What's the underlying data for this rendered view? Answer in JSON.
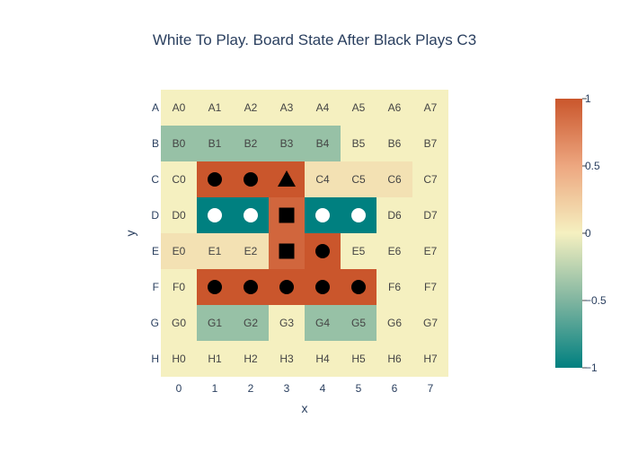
{
  "chart_data": {
    "type": "heatmap",
    "title": "White To Play. Board State After Black Plays C3",
    "xlabel": "x",
    "ylabel": "y",
    "x_ticks": [
      "0",
      "1",
      "2",
      "3",
      "4",
      "5",
      "6",
      "7"
    ],
    "y_ticks": [
      "A",
      "B",
      "C",
      "D",
      "E",
      "F",
      "G",
      "H"
    ],
    "zrange": [
      -1,
      1
    ],
    "colorbar_ticks": [
      {
        "value": 1,
        "label": "1"
      },
      {
        "value": 0.5,
        "label": "0.5"
      },
      {
        "value": 0,
        "label": "0"
      },
      {
        "value": -0.5,
        "label": "−0.5"
      },
      {
        "value": -1,
        "label": "−1"
      }
    ],
    "colorscale": [
      [
        0.0,
        "#008080"
      ],
      [
        0.25,
        "#80b5a0"
      ],
      [
        0.5,
        "#f5f0c0"
      ],
      [
        0.75,
        "#eda780"
      ],
      [
        1.0,
        "#ca562c"
      ]
    ],
    "z": [
      [
        0,
        0,
        0,
        0,
        0,
        0,
        0,
        0
      ],
      [
        -0.4,
        -0.4,
        -0.4,
        -0.4,
        -0.4,
        0,
        0,
        0
      ],
      [
        0,
        1,
        1,
        1,
        0.1,
        0.1,
        0.1,
        0
      ],
      [
        0,
        -1,
        -1,
        0.9,
        -1,
        -1,
        0,
        0
      ],
      [
        0.1,
        0.1,
        0.1,
        0.9,
        1,
        0,
        0,
        0
      ],
      [
        0,
        1,
        1,
        1,
        1,
        1,
        0,
        0
      ],
      [
        0,
        -0.4,
        -0.4,
        0,
        -0.4,
        -0.4,
        0,
        0
      ],
      [
        0,
        0,
        0,
        0,
        0,
        0,
        0,
        0
      ]
    ],
    "labels": [
      [
        "A0",
        "A1",
        "A2",
        "A3",
        "A4",
        "A5",
        "A6",
        "A7"
      ],
      [
        "B0",
        "B1",
        "B2",
        "B3",
        "B4",
        "B5",
        "B6",
        "B7"
      ],
      [
        "C0",
        "",
        "",
        "",
        "C4",
        "C5",
        "C6",
        "C7"
      ],
      [
        "D0",
        "",
        "",
        "",
        "",
        "",
        "D6",
        "D7"
      ],
      [
        "E0",
        "E1",
        "E2",
        "",
        "",
        "E5",
        "E6",
        "E7"
      ],
      [
        "F0",
        "",
        "",
        "",
        "",
        "",
        "F6",
        "F7"
      ],
      [
        "G0",
        "G1",
        "G2",
        "G3",
        "G4",
        "G5",
        "G6",
        "G7"
      ],
      [
        "H0",
        "H1",
        "H2",
        "H3",
        "H4",
        "H5",
        "H6",
        "H7"
      ]
    ],
    "markers": [
      {
        "row": 2,
        "col": 1,
        "symbol": "circle",
        "color": "#000000"
      },
      {
        "row": 2,
        "col": 2,
        "symbol": "circle",
        "color": "#000000"
      },
      {
        "row": 2,
        "col": 3,
        "symbol": "triangle",
        "color": "#000000"
      },
      {
        "row": 3,
        "col": 1,
        "symbol": "circle",
        "color": "#ffffff"
      },
      {
        "row": 3,
        "col": 2,
        "symbol": "circle",
        "color": "#ffffff"
      },
      {
        "row": 3,
        "col": 3,
        "symbol": "square",
        "color": "#000000"
      },
      {
        "row": 3,
        "col": 4,
        "symbol": "circle",
        "color": "#ffffff"
      },
      {
        "row": 3,
        "col": 5,
        "symbol": "circle",
        "color": "#ffffff"
      },
      {
        "row": 4,
        "col": 3,
        "symbol": "square",
        "color": "#000000"
      },
      {
        "row": 4,
        "col": 4,
        "symbol": "circle",
        "color": "#000000"
      },
      {
        "row": 5,
        "col": 1,
        "symbol": "circle",
        "color": "#000000"
      },
      {
        "row": 5,
        "col": 2,
        "symbol": "circle",
        "color": "#000000"
      },
      {
        "row": 5,
        "col": 3,
        "symbol": "circle",
        "color": "#000000"
      },
      {
        "row": 5,
        "col": 4,
        "symbol": "circle",
        "color": "#000000"
      },
      {
        "row": 5,
        "col": 5,
        "symbol": "circle",
        "color": "#000000"
      }
    ]
  }
}
